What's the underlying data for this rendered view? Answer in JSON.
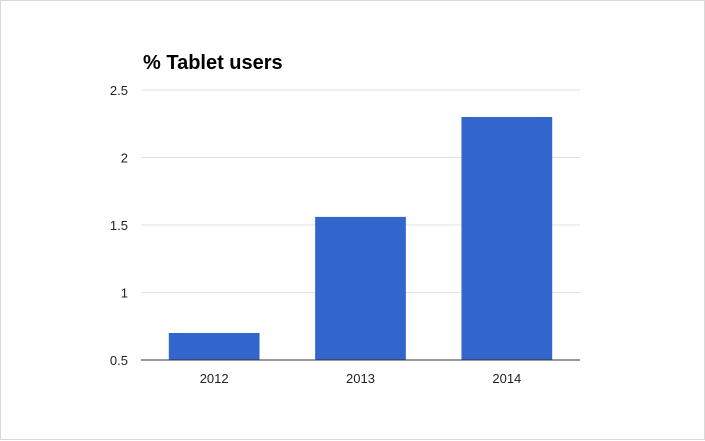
{
  "chart_data": {
    "type": "bar",
    "title": "% Tablet users",
    "xlabel": "",
    "ylabel": "",
    "categories": [
      "2012",
      "2013",
      "2014"
    ],
    "values": [
      0.7,
      1.56,
      2.3
    ],
    "ylim": [
      0.5,
      2.5
    ],
    "yticks": [
      0.5,
      1,
      1.5,
      2,
      2.5
    ],
    "ytick_labels": [
      "0.5",
      "1",
      "1.5",
      "2",
      "2.5"
    ],
    "grid": true,
    "legend": "none",
    "colors": {
      "bar": "#3366cc",
      "grid": "#e0e0e0",
      "axis": "#333333"
    }
  }
}
